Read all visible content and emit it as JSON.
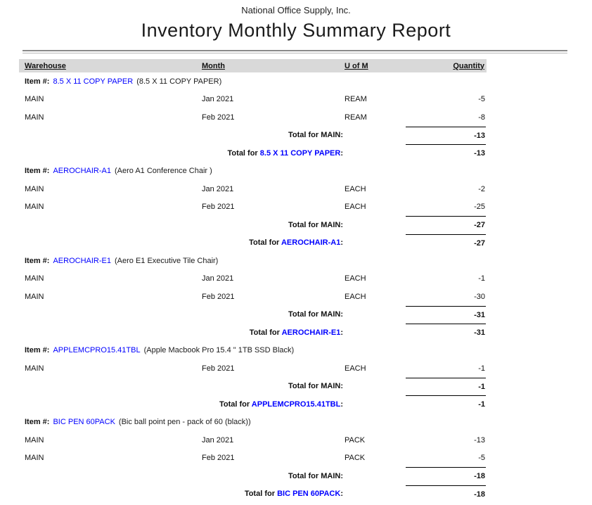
{
  "report": {
    "company": "National Office Supply, Inc.",
    "title": "Inventory Monthly Summary Report"
  },
  "colors": {
    "link_blue": "#0000ff",
    "header_band": "#d9d9d9",
    "rule_gray": "#8a8a8a"
  },
  "table": {
    "columns": [
      "Warehouse",
      "Month",
      "U of M",
      "Quantity"
    ],
    "sections": [
      {
        "item_label": "Item #:",
        "item_code": "8.5 X 11 COPY PAPER",
        "item_description": "(8.5 X 11 COPY PAPER)",
        "rows": [
          {
            "warehouse": "MAIN",
            "month": "Jan 2021",
            "uofm": "REAM",
            "quantity": "-5"
          },
          {
            "warehouse": "MAIN",
            "month": "Feb 2021",
            "uofm": "REAM",
            "quantity": "-8"
          }
        ],
        "warehouse_total": {
          "label": "Total for MAIN:",
          "quantity": "-13"
        },
        "item_total": {
          "prefix": "Total for",
          "name": "8.5 X 11 COPY PAPER",
          "suffix": ":",
          "quantity": "-13"
        }
      },
      {
        "item_label": "Item #:",
        "item_code": "AEROCHAIR-A1",
        "item_description": "(Aero A1 Conference Chair )",
        "rows": [
          {
            "warehouse": "MAIN",
            "month": "Jan 2021",
            "uofm": "EACH",
            "quantity": "-2"
          },
          {
            "warehouse": "MAIN",
            "month": "Feb 2021",
            "uofm": "EACH",
            "quantity": "-25"
          }
        ],
        "warehouse_total": {
          "label": "Total for MAIN:",
          "quantity": "-27"
        },
        "item_total": {
          "prefix": "Total for",
          "name": "AEROCHAIR-A1",
          "suffix": ":",
          "quantity": "-27"
        }
      },
      {
        "item_label": "Item #:",
        "item_code": "AEROCHAIR-E1",
        "item_description": "(Aero E1 Executive Tile Chair)",
        "rows": [
          {
            "warehouse": "MAIN",
            "month": "Jan 2021",
            "uofm": "EACH",
            "quantity": "-1"
          },
          {
            "warehouse": "MAIN",
            "month": "Feb 2021",
            "uofm": "EACH",
            "quantity": "-30"
          }
        ],
        "warehouse_total": {
          "label": "Total for MAIN:",
          "quantity": "-31"
        },
        "item_total": {
          "prefix": "Total for",
          "name": "AEROCHAIR-E1",
          "suffix": ":",
          "quantity": "-31"
        }
      },
      {
        "item_label": "Item #:",
        "item_code": "APPLEMCPRO15.41TBL",
        "item_description": "(Apple Macbook Pro 15.4 \" 1TB SSD Black)",
        "rows": [
          {
            "warehouse": "MAIN",
            "month": "Feb 2021",
            "uofm": "EACH",
            "quantity": "-1"
          }
        ],
        "warehouse_total": {
          "label": "Total for MAIN:",
          "quantity": "-1"
        },
        "item_total": {
          "prefix": "Total for",
          "name": "APPLEMCPRO15.41TBL",
          "suffix": ":",
          "quantity": "-1"
        }
      },
      {
        "item_label": "Item #:",
        "item_code": "BIC PEN 60PACK",
        "item_description": "(Bic ball point pen - pack of 60 (black))",
        "rows": [
          {
            "warehouse": "MAIN",
            "month": "Jan 2021",
            "uofm": "PACK",
            "quantity": "-13"
          },
          {
            "warehouse": "MAIN",
            "month": "Feb 2021",
            "uofm": "PACK",
            "quantity": "-5"
          }
        ],
        "warehouse_total": {
          "label": "Total for MAIN:",
          "quantity": "-18"
        },
        "item_total": {
          "prefix": "Total for",
          "name": "BIC PEN 60PACK",
          "suffix": ":",
          "quantity": "-18"
        }
      }
    ]
  }
}
